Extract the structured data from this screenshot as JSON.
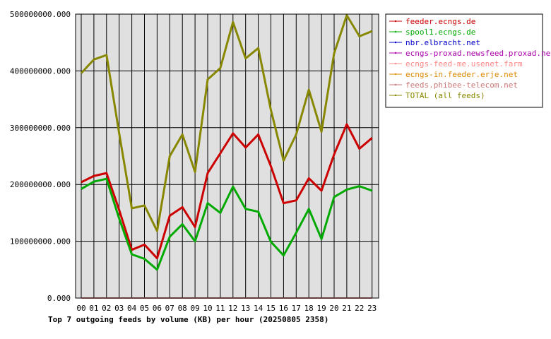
{
  "chart_data": {
    "type": "line",
    "title": "Top 7 outgoing feeds by volume (KB) per hour (20250805 2358)",
    "xlabel": "",
    "ylabel": "",
    "categories": [
      "00",
      "01",
      "02",
      "03",
      "04",
      "05",
      "06",
      "07",
      "08",
      "09",
      "10",
      "11",
      "12",
      "13",
      "14",
      "15",
      "16",
      "17",
      "18",
      "19",
      "20",
      "21",
      "22",
      "23"
    ],
    "ylim": [
      0,
      500000000
    ],
    "yticks": [
      0,
      100000000,
      200000000,
      300000000,
      400000000,
      500000000
    ],
    "ytick_labels": [
      "0.000",
      "100000000.000",
      "200000000.000",
      "300000000.000",
      "400000000.000",
      "500000000.000"
    ],
    "grid": true,
    "legend_position": "right",
    "plot_background": "#e0e0e0",
    "series": [
      {
        "name": "feeder.ecngs.de",
        "color": "#cc0000",
        "values": [
          204000000,
          215000000,
          220000000,
          155000000,
          85000000,
          94000000,
          70000000,
          145000000,
          160000000,
          125000000,
          220000000,
          255000000,
          290000000,
          265000000,
          288000000,
          232000000,
          167000000,
          172000000,
          211000000,
          189000000,
          253000000,
          306000000,
          263000000,
          282000000
        ]
      },
      {
        "name": "spool1.ecngs.de",
        "color": "#00aa00",
        "values": [
          192000000,
          205000000,
          210000000,
          140000000,
          77000000,
          69000000,
          50000000,
          108000000,
          130000000,
          100000000,
          167000000,
          150000000,
          196000000,
          157000000,
          152000000,
          99000000,
          75000000,
          115000000,
          157000000,
          104000000,
          178000000,
          191000000,
          197000000,
          189000000
        ]
      },
      {
        "name": "nbr.elbracht.net",
        "color": "#0000cc",
        "values": [
          0,
          0,
          0,
          0,
          0,
          0,
          0,
          0,
          0,
          0,
          0,
          0,
          0,
          0,
          0,
          0,
          0,
          0,
          0,
          0,
          0,
          0,
          0,
          0
        ]
      },
      {
        "name": "ecngs-proxad.newsfeed.proxad.net",
        "color": "#aa00aa",
        "values": [
          0,
          0,
          0,
          0,
          0,
          0,
          0,
          0,
          0,
          0,
          0,
          0,
          0,
          0,
          0,
          0,
          0,
          0,
          0,
          0,
          0,
          0,
          0,
          0
        ]
      },
      {
        "name": "ecngs-feed-me.usenet.farm",
        "color": "#ff8888",
        "values": [
          0,
          0,
          0,
          0,
          0,
          0,
          0,
          0,
          0,
          0,
          0,
          0,
          0,
          0,
          0,
          0,
          0,
          0,
          0,
          0,
          0,
          0,
          0,
          0
        ]
      },
      {
        "name": "ecngs-in.feeder.erje.net",
        "color": "#dd8800",
        "values": [
          0,
          0,
          0,
          0,
          0,
          0,
          0,
          0,
          0,
          0,
          0,
          0,
          0,
          0,
          0,
          0,
          0,
          0,
          0,
          0,
          0,
          0,
          0,
          0
        ]
      },
      {
        "name": "feeds.phibee-telecom.net",
        "color": "#cc7777",
        "values": [
          0,
          0,
          0,
          0,
          0,
          0,
          0,
          0,
          0,
          0,
          0,
          0,
          0,
          0,
          0,
          0,
          0,
          0,
          0,
          0,
          0,
          0,
          0,
          0
        ]
      },
      {
        "name": "TOTAL (all feeds)",
        "color": "#888800",
        "values": [
          396000000,
          420000000,
          428000000,
          290000000,
          158000000,
          163000000,
          118000000,
          250000000,
          288000000,
          222000000,
          385000000,
          405000000,
          486000000,
          422000000,
          440000000,
          331000000,
          242000000,
          288000000,
          367000000,
          293000000,
          431000000,
          498000000,
          461000000,
          470000000
        ]
      }
    ]
  }
}
